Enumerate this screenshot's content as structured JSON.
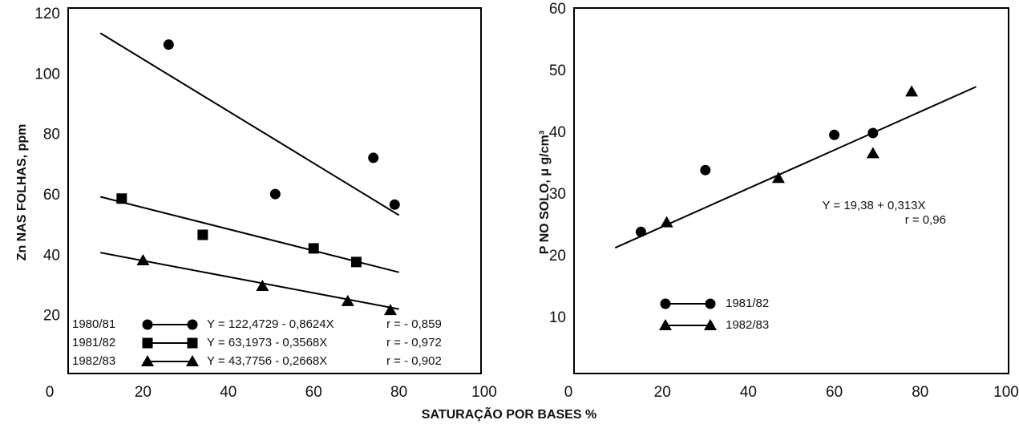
{
  "chart_data": [
    {
      "type": "scatter",
      "ylabel": "Zn NAS FOLHAS, ppm",
      "xlim": [
        0,
        100
      ],
      "xticks": [
        0,
        20,
        40,
        60,
        80,
        100
      ],
      "ylim": [
        0,
        120
      ],
      "yticks": [
        20,
        40,
        60,
        80,
        100,
        120
      ],
      "series": [
        {
          "name": "1980/81",
          "marker": "circle",
          "color": "#000000",
          "x": [
            26,
            51,
            74,
            79
          ],
          "values": [
            110,
            60.5,
            72.5,
            57
          ],
          "fit_x": [
            10,
            80
          ],
          "fit_y": [
            113.8,
            53.5
          ],
          "equation": "Y = 122,4729 - 0,8624X",
          "r": "r = - 0,859"
        },
        {
          "name": "1981/82",
          "marker": "square",
          "color": "#000000",
          "x": [
            15,
            34,
            60,
            70
          ],
          "values": [
            59,
            47,
            42.5,
            38
          ],
          "fit_x": [
            10,
            80
          ],
          "fit_y": [
            59.6,
            34.6
          ],
          "equation": "Y = 63,1973 - 0,3568X",
          "r": "r = - 0,972"
        },
        {
          "name": "1982/83",
          "marker": "triangle",
          "color": "#000000",
          "x": [
            20,
            48,
            68,
            78
          ],
          "values": [
            38.5,
            30,
            25,
            22
          ],
          "fit_x": [
            10,
            80
          ],
          "fit_y": [
            41.1,
            22.4
          ],
          "equation": "Y = 43,7756 - 0,2668X",
          "r": "r = - 0,902"
        }
      ]
    },
    {
      "type": "scatter",
      "ylabel": "P NO SOLO, μ g/cm³",
      "xlim": [
        0,
        100
      ],
      "xticks": [
        0,
        20,
        40,
        60,
        80,
        100
      ],
      "ylim": [
        0,
        60
      ],
      "yticks": [
        10,
        20,
        30,
        40,
        50,
        60
      ],
      "series": [
        {
          "name": "1981/82",
          "marker": "circle",
          "color": "#000000",
          "x": [
            15,
            30,
            60,
            69
          ],
          "values": [
            24,
            34,
            39.7,
            40
          ]
        },
        {
          "name": "1982/83",
          "marker": "triangle",
          "color": "#000000",
          "x": [
            21,
            47,
            69,
            78
          ],
          "values": [
            25.5,
            32.7,
            36.7,
            46.7
          ]
        }
      ],
      "fit_x": [
        9,
        93
      ],
      "fit_y": [
        21.4,
        47.5
      ],
      "equation": "Y = 19,38 + 0,313X",
      "r": "r = 0,96"
    }
  ],
  "xlabel": "SATURAÇÃO POR BASES %"
}
